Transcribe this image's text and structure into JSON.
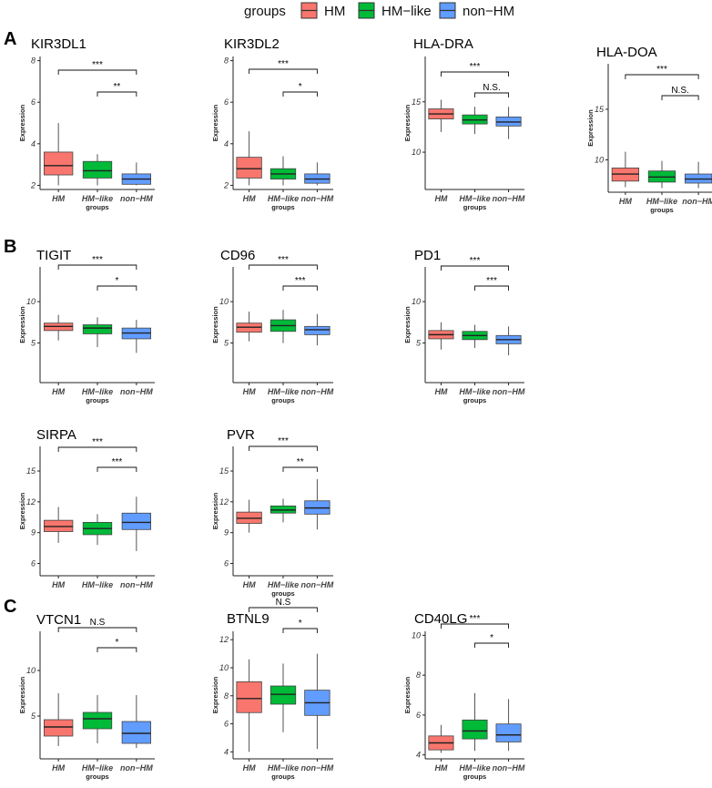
{
  "legend": {
    "title": "groups",
    "items": [
      {
        "label": "HM",
        "color": "#f8766d"
      },
      {
        "label": "HM−like",
        "color": "#00ba38"
      },
      {
        "label": "non−HM",
        "color": "#619cff"
      }
    ]
  },
  "panel_labels": {
    "a": "A",
    "b": "B",
    "c": "C"
  },
  "chart_data": [
    {
      "type": "box",
      "title": "KIR3DL1",
      "categories": [
        "HM",
        "HM−like",
        "non−HM"
      ],
      "xlabel": "groups",
      "ylabel": "Expression",
      "yticks": [
        2,
        4,
        6,
        8
      ],
      "ylim": [
        1.8,
        8.2
      ],
      "boxes": [
        {
          "min": 2.0,
          "q1": 2.5,
          "median": 2.95,
          "q3": 3.6,
          "max": 5.0
        },
        {
          "min": 2.0,
          "q1": 2.35,
          "median": 2.7,
          "q3": 3.15,
          "max": 3.5
        },
        {
          "min": 2.0,
          "q1": 2.05,
          "median": 2.3,
          "q3": 2.55,
          "max": 3.1
        }
      ],
      "comparisons": [
        {
          "from": "HM",
          "to": "non−HM",
          "label": "***"
        },
        {
          "from": "HM−like",
          "to": "non−HM",
          "label": "**"
        }
      ]
    },
    {
      "type": "box",
      "title": "KIR3DL2",
      "categories": [
        "HM",
        "HM−like",
        "non−HM"
      ],
      "xlabel": "groups",
      "ylabel": "Expression",
      "yticks": [
        2,
        4,
        6,
        8
      ],
      "ylim": [
        1.8,
        8.2
      ],
      "boxes": [
        {
          "min": 2.0,
          "q1": 2.35,
          "median": 2.8,
          "q3": 3.35,
          "max": 4.6
        },
        {
          "min": 2.0,
          "q1": 2.3,
          "median": 2.55,
          "q3": 2.8,
          "max": 3.4
        },
        {
          "min": 2.0,
          "q1": 2.1,
          "median": 2.3,
          "q3": 2.55,
          "max": 3.1
        }
      ],
      "comparisons": [
        {
          "from": "HM",
          "to": "non−HM",
          "label": "***"
        },
        {
          "from": "HM−like",
          "to": "non−HM",
          "label": "*"
        }
      ]
    },
    {
      "type": "box",
      "title": "HLA-DRA",
      "categories": [
        "HM",
        "HM−like",
        "non−HM"
      ],
      "xlabel": "groups",
      "ylabel": "Expression",
      "yticks": [
        10,
        15
      ],
      "ylim": [
        6.3,
        19.5
      ],
      "boxes": [
        {
          "min": 12.0,
          "q1": 13.3,
          "median": 13.8,
          "q3": 14.3,
          "max": 15.2
        },
        {
          "min": 11.8,
          "q1": 12.8,
          "median": 13.2,
          "q3": 13.7,
          "max": 14.5
        },
        {
          "min": 11.3,
          "q1": 12.6,
          "median": 13.0,
          "q3": 13.5,
          "max": 14.5
        }
      ],
      "comparisons": [
        {
          "from": "HM",
          "to": "non−HM",
          "label": "***"
        },
        {
          "from": "HM−like",
          "to": "non−HM",
          "label": "N.S."
        }
      ]
    },
    {
      "type": "box",
      "title": "HLA-DOA",
      "categories": [
        "HM",
        "HM−like",
        "non−HM"
      ],
      "xlabel": "groups",
      "ylabel": "Expression",
      "yticks": [
        10,
        15
      ],
      "ylim": [
        6.8,
        19.5
      ],
      "boxes": [
        {
          "min": 7.3,
          "q1": 7.9,
          "median": 8.6,
          "q3": 9.2,
          "max": 10.8
        },
        {
          "min": 7.2,
          "q1": 7.8,
          "median": 8.3,
          "q3": 8.9,
          "max": 9.9
        },
        {
          "min": 7.2,
          "q1": 7.7,
          "median": 8.1,
          "q3": 8.6,
          "max": 9.8
        }
      ],
      "comparisons": [
        {
          "from": "HM",
          "to": "non−HM",
          "label": "***"
        },
        {
          "from": "HM−like",
          "to": "non−HM",
          "label": "N.S."
        }
      ]
    },
    {
      "type": "box",
      "title": "TIGIT",
      "categories": [
        "HM",
        "HM−like",
        "non−HM"
      ],
      "xlabel": "groups",
      "ylabel": "Expression",
      "yticks": [
        5,
        10
      ],
      "ylim": [
        0.2,
        14.2
      ],
      "boxes": [
        {
          "min": 5.3,
          "q1": 6.5,
          "median": 7.0,
          "q3": 7.4,
          "max": 8.4
        },
        {
          "min": 4.5,
          "q1": 6.1,
          "median": 6.8,
          "q3": 7.2,
          "max": 8.1
        },
        {
          "min": 3.8,
          "q1": 5.5,
          "median": 6.2,
          "q3": 6.8,
          "max": 7.8
        }
      ],
      "comparisons": [
        {
          "from": "HM",
          "to": "non−HM",
          "label": "***"
        },
        {
          "from": "HM−like",
          "to": "non−HM",
          "label": "*"
        }
      ]
    },
    {
      "type": "box",
      "title": "CD96",
      "categories": [
        "HM",
        "HM−like",
        "non−HM"
      ],
      "xlabel": "groups",
      "ylabel": "Expression",
      "yticks": [
        5,
        10
      ],
      "ylim": [
        0.2,
        14.2
      ],
      "boxes": [
        {
          "min": 5.2,
          "q1": 6.3,
          "median": 6.9,
          "q3": 7.4,
          "max": 8.8
        },
        {
          "min": 5.0,
          "q1": 6.4,
          "median": 7.1,
          "q3": 7.8,
          "max": 9.0
        },
        {
          "min": 4.7,
          "q1": 6.0,
          "median": 6.6,
          "q3": 7.0,
          "max": 8.5
        }
      ],
      "comparisons": [
        {
          "from": "HM",
          "to": "non−HM",
          "label": "***"
        },
        {
          "from": "HM−like",
          "to": "non−HM",
          "label": "***"
        }
      ]
    },
    {
      "type": "box",
      "title": "PD1",
      "categories": [
        "HM",
        "HM−like",
        "non−HM"
      ],
      "xlabel": "groups",
      "ylabel": "Expression",
      "yticks": [
        5,
        10
      ],
      "ylim": [
        0.2,
        14.2
      ],
      "boxes": [
        {
          "min": 4.2,
          "q1": 5.5,
          "median": 6.0,
          "q3": 6.5,
          "max": 7.5
        },
        {
          "min": 4.4,
          "q1": 5.4,
          "median": 5.9,
          "q3": 6.4,
          "max": 7.2
        },
        {
          "min": 3.5,
          "q1": 4.9,
          "median": 5.4,
          "q3": 5.9,
          "max": 7.0
        }
      ],
      "comparisons": [
        {
          "from": "HM",
          "to": "non−HM",
          "label": "***"
        },
        {
          "from": "HM−like",
          "to": "non−HM",
          "label": "***"
        }
      ]
    },
    {
      "type": "box",
      "title": "SIRPA",
      "categories": [
        "HM",
        "HM−like",
        "non−HM"
      ],
      "xlabel": "",
      "ylabel": "Expression",
      "yticks": [
        6,
        9,
        12,
        15
      ],
      "ylim": [
        4.8,
        17.4
      ],
      "boxes": [
        {
          "min": 8.0,
          "q1": 9.1,
          "median": 9.6,
          "q3": 10.2,
          "max": 11.5
        },
        {
          "min": 7.8,
          "q1": 8.8,
          "median": 9.4,
          "q3": 10.0,
          "max": 10.8
        },
        {
          "min": 7.2,
          "q1": 9.3,
          "median": 10.0,
          "q3": 10.9,
          "max": 12.5
        }
      ],
      "comparisons": [
        {
          "from": "HM",
          "to": "non−HM",
          "label": "***"
        },
        {
          "from": "HM−like",
          "to": "non−HM",
          "label": "***"
        }
      ]
    },
    {
      "type": "box",
      "title": "PVR",
      "categories": [
        "HM",
        "HM−like",
        "non−HM"
      ],
      "xlabel": "groups",
      "ylabel": "Expression",
      "yticks": [
        6,
        9,
        12,
        15
      ],
      "ylim": [
        4.8,
        17.4
      ],
      "boxes": [
        {
          "min": 9.0,
          "q1": 9.9,
          "median": 10.4,
          "q3": 11.0,
          "max": 12.2
        },
        {
          "min": 10.0,
          "q1": 10.9,
          "median": 11.2,
          "q3": 11.6,
          "max": 12.3
        },
        {
          "min": 9.3,
          "q1": 10.8,
          "median": 11.4,
          "q3": 12.1,
          "max": 14.2
        }
      ],
      "comparisons": [
        {
          "from": "HM",
          "to": "non−HM",
          "label": "***"
        },
        {
          "from": "HM−like",
          "to": "non−HM",
          "label": "**"
        }
      ]
    },
    {
      "type": "box",
      "title": "VTCN1",
      "categories": [
        "HM",
        "HM−like",
        "non−HM"
      ],
      "xlabel": "groups",
      "ylabel": "Expression",
      "yticks": [
        5,
        10
      ],
      "ylim": [
        0.3,
        14.3
      ],
      "boxes": [
        {
          "min": 1.7,
          "q1": 2.8,
          "median": 3.8,
          "q3": 4.6,
          "max": 7.5
        },
        {
          "min": 2.0,
          "q1": 3.6,
          "median": 4.7,
          "q3": 5.4,
          "max": 7.3
        },
        {
          "min": 1.5,
          "q1": 2.0,
          "median": 3.1,
          "q3": 4.4,
          "max": 7.3
        }
      ],
      "comparisons": [
        {
          "from": "HM",
          "to": "non−HM",
          "label": "N.S"
        },
        {
          "from": "HM−like",
          "to": "non−HM",
          "label": "*"
        }
      ]
    },
    {
      "type": "box",
      "title": "BTNL9",
      "categories": [
        "HM",
        "HM−like",
        "non−HM"
      ],
      "xlabel": "groups",
      "ylabel": "Expression",
      "yticks": [
        4,
        6,
        8,
        10,
        12
      ],
      "ylim": [
        3.5,
        12.6
      ],
      "boxes": [
        {
          "min": 4.0,
          "q1": 6.8,
          "median": 7.8,
          "q3": 9.0,
          "max": 10.6
        },
        {
          "min": 5.4,
          "q1": 7.4,
          "median": 8.1,
          "q3": 8.7,
          "max": 10.3
        },
        {
          "min": 4.2,
          "q1": 6.6,
          "median": 7.5,
          "q3": 8.4,
          "max": 11.0
        }
      ],
      "comparisons": [
        {
          "from": "HM",
          "to": "non−HM",
          "label": "N.S"
        },
        {
          "from": "HM−like",
          "to": "non−HM",
          "label": "*"
        }
      ]
    },
    {
      "type": "box",
      "title": "CD40LG",
      "categories": [
        "HM",
        "HM−like",
        "non−HM"
      ],
      "xlabel": "groups",
      "ylabel": "Expression",
      "yticks": [
        4,
        6,
        8,
        10
      ],
      "ylim": [
        3.8,
        10.2
      ],
      "boxes": [
        {
          "min": 4.1,
          "q1": 4.25,
          "median": 4.6,
          "q3": 4.95,
          "max": 5.5
        },
        {
          "min": 4.2,
          "q1": 4.8,
          "median": 5.2,
          "q3": 5.75,
          "max": 7.1
        },
        {
          "min": 4.2,
          "q1": 4.65,
          "median": 5.0,
          "q3": 5.55,
          "max": 6.8
        }
      ],
      "comparisons": [
        {
          "from": "HM",
          "to": "non−HM",
          "label": "***"
        },
        {
          "from": "HM−like",
          "to": "non−HM",
          "label": "*"
        }
      ]
    }
  ]
}
